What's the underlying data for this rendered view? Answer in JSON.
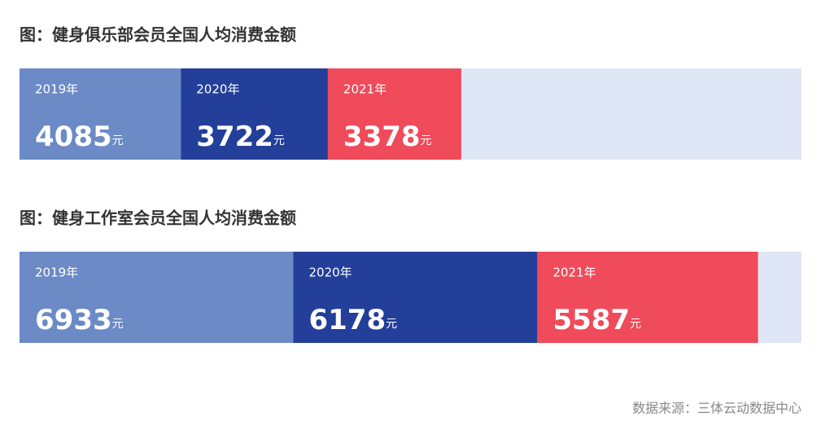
{
  "chart_data": [
    {
      "type": "stacked-bar",
      "title": "图：健身俱乐部会员全国人均消费金额",
      "unit": "元",
      "xlim": [
        0,
        19800
      ],
      "series": [
        {
          "name": "2019年",
          "color": "#6b8ac6",
          "values": [
            4085
          ]
        },
        {
          "name": "2020年",
          "color": "#233f99",
          "values": [
            3722
          ]
        },
        {
          "name": "2021年",
          "color": "#ef4b5a",
          "values": [
            3378
          ]
        }
      ]
    },
    {
      "type": "stacked-bar",
      "title": "图：健身工作室会员全国人均消费金额",
      "unit": "元",
      "xlim": [
        0,
        19800
      ],
      "series": [
        {
          "name": "2019年",
          "color": "#6b8ac6",
          "values": [
            6933
          ]
        },
        {
          "name": "2020年",
          "color": "#233f99",
          "values": [
            6178
          ]
        },
        {
          "name": "2021年",
          "color": "#ef4b5a",
          "values": [
            5587
          ]
        }
      ]
    }
  ],
  "source": "数据来源：三体云动数据中心"
}
